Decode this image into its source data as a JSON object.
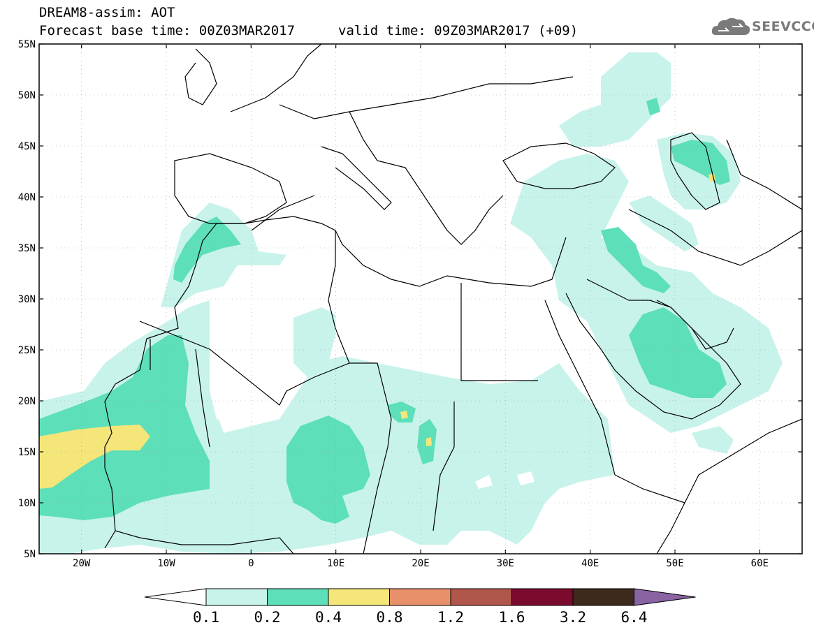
{
  "header": {
    "line1": "DREAM8-assim: AOT",
    "line2": "Forecast base time: 00Z03MAR2017",
    "valid": "valid time: 09Z03MAR2017 (+09)"
  },
  "logo": {
    "text": "SEEVCCC",
    "icon": "cloud-logo-icon"
  },
  "map": {
    "lon_range": [
      -25,
      65
    ],
    "lat_range": [
      5,
      55
    ],
    "lat_ticks": [
      "55N",
      "50N",
      "45N",
      "40N",
      "35N",
      "30N",
      "25N",
      "20N",
      "15N",
      "10N",
      "5N"
    ],
    "lon_ticks": [
      "20W",
      "10W",
      "0",
      "10E",
      "20E",
      "30E",
      "40E",
      "50E",
      "60E"
    ]
  },
  "colorbar": {
    "labels": [
      "0.1",
      "0.2",
      "0.4",
      "0.8",
      "1.2",
      "1.6",
      "3.2",
      "6.4"
    ],
    "colors": [
      "#ffffff",
      "#c8f3eb",
      "#5ddfb9",
      "#f5e67a",
      "#e8906a",
      "#b0564b",
      "#7a0a2e",
      "#3d2a1c",
      "#8a63a3"
    ]
  }
}
